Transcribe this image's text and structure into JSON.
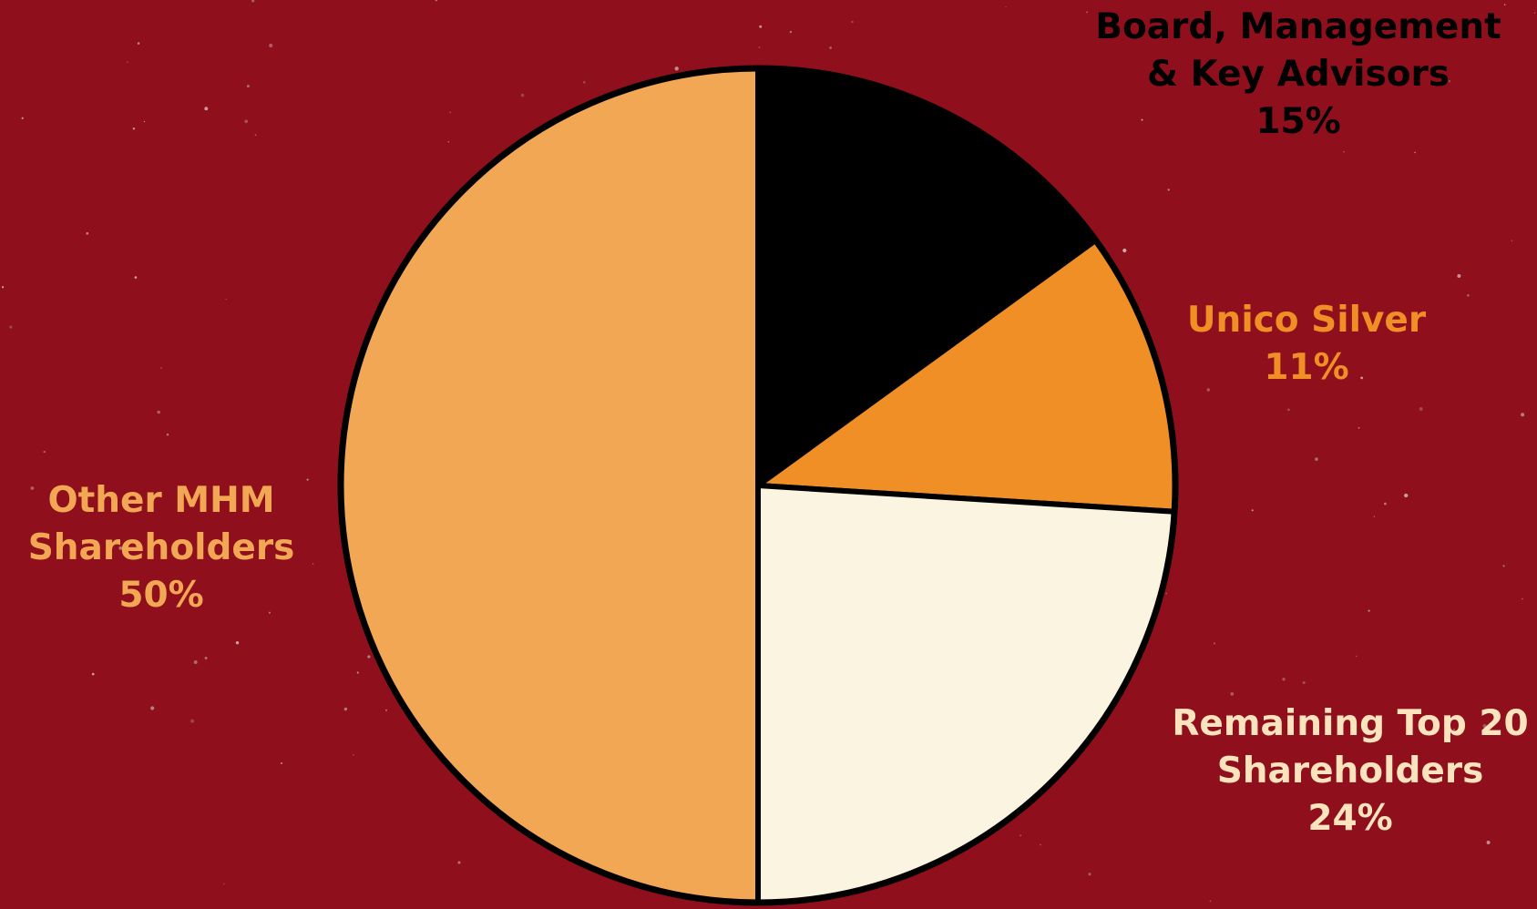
{
  "colors": {
    "background": "#8f0f1d",
    "outline": "#000000"
  },
  "chart_data": {
    "type": "pie",
    "title": "",
    "start_angle_deg": 0,
    "direction": "clockwise",
    "slices": [
      {
        "label_lines": [
          "Board, Management",
          "& Key Advisors"
        ],
        "value": 15,
        "value_label": "15%",
        "color": "#000000",
        "label_color": "#000000"
      },
      {
        "label_lines": [
          "Unico Silver"
        ],
        "value": 11,
        "value_label": "11%",
        "color": "#f08f25",
        "label_color": "#f08f25"
      },
      {
        "label_lines": [
          "Remaining Top 20",
          "Shareholders"
        ],
        "value": 24,
        "value_label": "24%",
        "color": "#fbf4e0",
        "label_color": "#fbe3bd"
      },
      {
        "label_lines": [
          "Other MHM",
          "Shareholders"
        ],
        "value": 50,
        "value_label": "50%",
        "color": "#f2a754",
        "label_color": "#f2a754"
      }
    ]
  }
}
